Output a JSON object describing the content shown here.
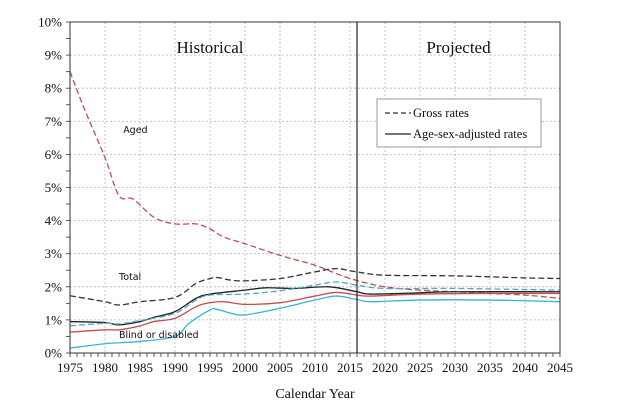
{
  "chart_data": {
    "type": "line",
    "title": "",
    "xlabel": "Calendar Year",
    "ylabel": "",
    "xlim": [
      1975,
      2045
    ],
    "ylim": [
      0,
      10
    ],
    "grid": true,
    "x_ticks": [
      "1975",
      "1980",
      "1985",
      "1990",
      "1995",
      "2000",
      "2005",
      "2010",
      "2015",
      "2020",
      "2025",
      "2030",
      "2035",
      "2040",
      "2045"
    ],
    "y_ticks": [
      "0%",
      "1%",
      "2%",
      "3%",
      "4%",
      "5%",
      "6%",
      "7%",
      "8%",
      "9%",
      "10%"
    ],
    "period_divider_year": 2016,
    "period_labels": [
      {
        "text": "Historical",
        "x": 1995.0
      },
      {
        "text": "Projected",
        "x": 2030.5
      }
    ],
    "legend": {
      "placement": "upper-right",
      "entries": [
        {
          "label": "Gross rates",
          "style": "dashed",
          "color": "#333333"
        },
        {
          "label": "Age-sex-adjusted rates",
          "style": "solid",
          "color": "#222222"
        }
      ]
    },
    "annotations": [
      {
        "text": "Aged",
        "x": 1982.6,
        "y": 6.65
      },
      {
        "text": "Total",
        "x": 1982.0,
        "y": 2.2
      },
      {
        "text": "Blind or disabled",
        "x": 1982.0,
        "y": 0.45
      }
    ],
    "series": [
      {
        "name": "Aged - gross rates",
        "group": "Aged",
        "style": "dashed",
        "color": "#c0504d",
        "x": [
          1975,
          1977,
          1980,
          1982,
          1984,
          1987,
          1990,
          1993,
          1995,
          1997,
          2000,
          2005,
          2010,
          2015,
          2020,
          2025,
          2030,
          2035,
          2040,
          2045
        ],
        "values": [
          8.5,
          7.4,
          5.9,
          4.75,
          4.65,
          4.1,
          3.9,
          3.9,
          3.75,
          3.5,
          3.3,
          2.95,
          2.65,
          2.25,
          2.0,
          1.9,
          1.85,
          1.8,
          1.75,
          1.65
        ]
      },
      {
        "name": "Aged - age-sex-adjusted rates",
        "group": "Aged",
        "style": "solid",
        "color": "#c0504d",
        "x": [
          1975,
          1980,
          1982,
          1985,
          1987,
          1990,
          1993,
          1995,
          1997,
          2000,
          2005,
          2010,
          2013,
          2016,
          2018,
          2025,
          2035,
          2045
        ],
        "values": [
          0.63,
          0.7,
          0.7,
          0.82,
          0.95,
          1.05,
          1.4,
          1.52,
          1.55,
          1.47,
          1.52,
          1.72,
          1.83,
          1.75,
          1.72,
          1.78,
          1.8,
          1.8
        ]
      },
      {
        "name": "Total - gross rates",
        "group": "Total",
        "style": "dashed",
        "color": "#333333",
        "x": [
          1975,
          1980,
          1982,
          1985,
          1990,
          1993,
          1995,
          1996,
          1998,
          2000,
          2005,
          2010,
          2013,
          2016,
          2020,
          2030,
          2040,
          2045
        ],
        "values": [
          1.73,
          1.55,
          1.45,
          1.55,
          1.68,
          2.1,
          2.25,
          2.28,
          2.2,
          2.18,
          2.25,
          2.45,
          2.55,
          2.45,
          2.35,
          2.33,
          2.27,
          2.25
        ]
      },
      {
        "name": "Total - age-sex-adjusted rates",
        "group": "Total",
        "style": "solid",
        "color": "#222222",
        "x": [
          1975,
          1980,
          1982,
          1985,
          1987,
          1990,
          1993,
          1995,
          2000,
          2003,
          2007,
          2012,
          2016,
          2018,
          2025,
          2030,
          2045
        ],
        "values": [
          0.95,
          0.92,
          0.85,
          0.95,
          1.08,
          1.25,
          1.65,
          1.78,
          1.9,
          1.97,
          1.95,
          2.0,
          1.85,
          1.78,
          1.82,
          1.85,
          1.85
        ]
      },
      {
        "name": "Blind or disabled - gross rates",
        "group": "Blind or disabled",
        "style": "dashed",
        "color": "#4bacc6",
        "x": [
          1975,
          1980,
          1982,
          1985,
          1990,
          1993,
          1995,
          2000,
          2005,
          2010,
          2013,
          2016,
          2020,
          2030,
          2045
        ],
        "values": [
          0.82,
          0.9,
          0.88,
          0.98,
          1.2,
          1.6,
          1.75,
          1.78,
          1.88,
          2.05,
          2.15,
          2.05,
          1.95,
          1.95,
          1.9
        ]
      },
      {
        "name": "Blind or disabled - age-sex-adjusted rates",
        "group": "Blind or disabled",
        "style": "solid",
        "color": "#35b5dc",
        "x": [
          1975,
          1980,
          1985,
          1990,
          1992,
          1995,
          1996,
          1998,
          2000,
          2005,
          2010,
          2013,
          2016,
          2018,
          2025,
          2035,
          2045
        ],
        "values": [
          0.15,
          0.28,
          0.35,
          0.5,
          0.9,
          1.3,
          1.32,
          1.2,
          1.15,
          1.35,
          1.6,
          1.72,
          1.62,
          1.55,
          1.6,
          1.6,
          1.55
        ]
      }
    ]
  }
}
